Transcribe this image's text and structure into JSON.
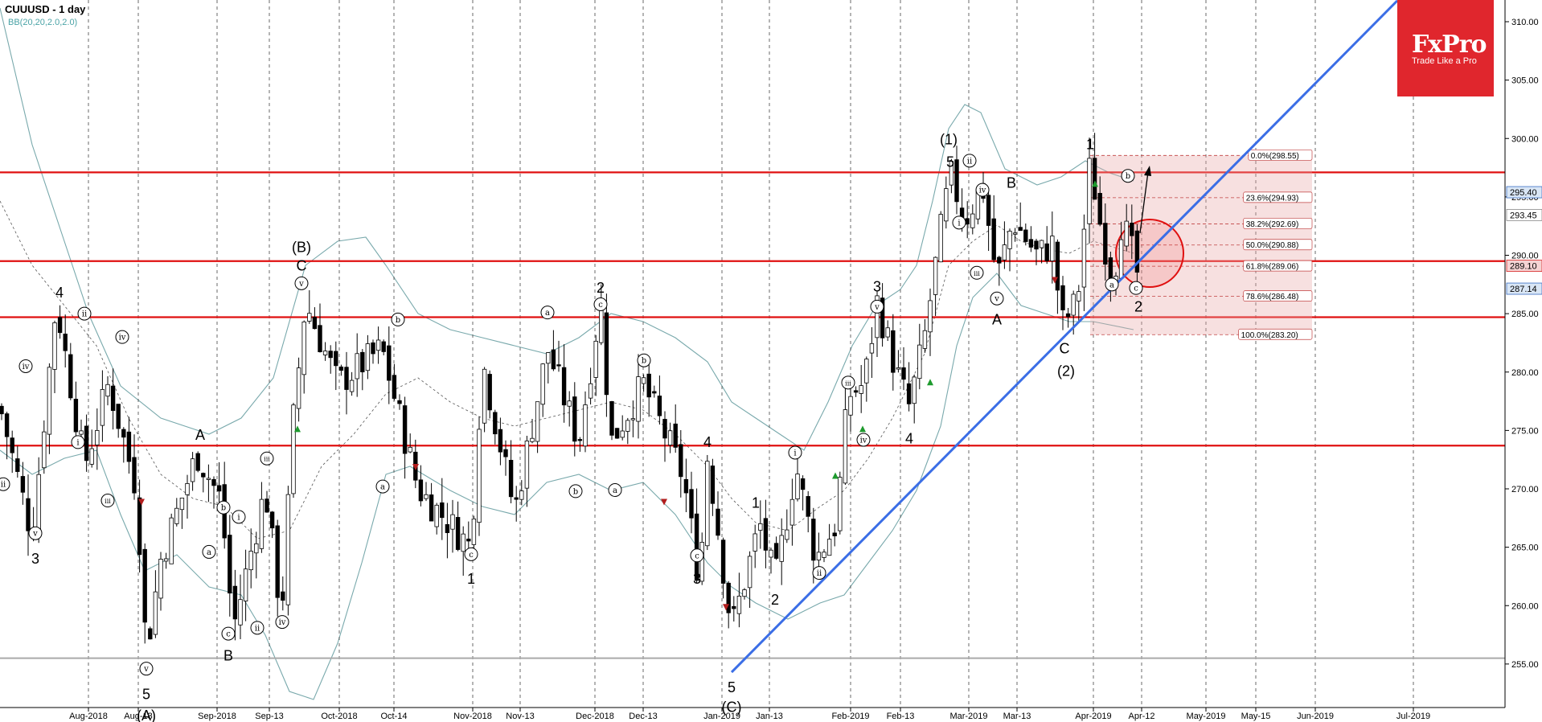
{
  "header": {
    "title": "CUUUSD - 1 day",
    "indicator": "BB(20,20,2.0,2.0)"
  },
  "logo": {
    "name": "FxPro",
    "tagline": "Trade Like a Pro"
  },
  "chart_data": {
    "type": "candlestick",
    "symbol": "CUUUSD",
    "timeframe": "1 day",
    "ylim": [
      251.5,
      311.5
    ],
    "y_ticks": [
      255.0,
      260.0,
      265.0,
      270.0,
      275.0,
      280.0,
      285.0,
      290.0,
      295.0,
      300.0,
      305.0,
      310.0
    ],
    "x_ticks": [
      {
        "label": "Aug-2018",
        "x": 110
      },
      {
        "label": "Aug-13",
        "x": 172
      },
      {
        "label": "Sep-2018",
        "x": 270
      },
      {
        "label": "Sep-13",
        "x": 335
      },
      {
        "label": "Oct-2018",
        "x": 422
      },
      {
        "label": "Oct-14",
        "x": 490
      },
      {
        "label": "Nov-2018",
        "x": 588
      },
      {
        "label": "Nov-13",
        "x": 647
      },
      {
        "label": "Dec-2018",
        "x": 740
      },
      {
        "label": "Dec-13",
        "x": 800
      },
      {
        "label": "Jan-2019",
        "x": 898
      },
      {
        "label": "Jan-13",
        "x": 957
      },
      {
        "label": "Feb-2019",
        "x": 1058
      },
      {
        "label": "Feb-13",
        "x": 1120
      },
      {
        "label": "Mar-2019",
        "x": 1205
      },
      {
        "label": "Mar-13",
        "x": 1265
      },
      {
        "label": "Apr-2019",
        "x": 1360
      },
      {
        "label": "Apr-12",
        "x": 1420
      },
      {
        "label": "May-2019",
        "x": 1500
      },
      {
        "label": "May-15",
        "x": 1562
      },
      {
        "label": "Jun-2019",
        "x": 1636
      },
      {
        "label": "Jul-2019",
        "x": 1758
      }
    ],
    "resistance_levels": [
      297.1,
      289.5,
      284.7,
      273.7
    ],
    "gray_level": 255.5,
    "price_labels": [
      {
        "text": "295.40",
        "value": 295.4,
        "style": "blue"
      },
      {
        "text": "293.45",
        "value": 293.45,
        "style": "plain"
      },
      {
        "text": "289.10",
        "value": 289.1,
        "style": "red"
      },
      {
        "text": "287.14",
        "value": 287.14,
        "style": "blue"
      }
    ],
    "fib_levels": [
      {
        "label": "0.0%(298.55)",
        "value": 298.55
      },
      {
        "label": "23.6%(294.93)",
        "value": 294.93
      },
      {
        "label": "38.2%(292.69)",
        "value": 292.69
      },
      {
        "label": "50.0%(290.88)",
        "value": 290.88
      },
      {
        "label": "61.8%(289.06)",
        "value": 289.06
      },
      {
        "label": "78.6%(286.48)",
        "value": 286.48
      },
      {
        "label": "100.0%(283.20)",
        "value": 283.2
      }
    ],
    "trendline": {
      "from": {
        "date": "Jan-2019",
        "value": 254.3
      },
      "to": {
        "date": "Jul-2019",
        "value": 311.8
      }
    },
    "wave_labels": [
      {
        "text": "4",
        "x": 74,
        "v": 286.8,
        "c": false
      },
      {
        "text": "ii",
        "x": 105,
        "v": 285.0,
        "c": true
      },
      {
        "text": "iv",
        "x": 32,
        "v": 280.5,
        "c": true
      },
      {
        "text": "iv",
        "x": 152,
        "v": 283.0,
        "c": true
      },
      {
        "text": "i",
        "x": 97,
        "v": 274.0,
        "c": true
      },
      {
        "text": "iii",
        "x": 134,
        "v": 269.0,
        "c": true
      },
      {
        "text": "ii",
        "x": 4,
        "v": 270.4,
        "c": true
      },
      {
        "text": "v",
        "x": 44,
        "v": 266.2,
        "c": true
      },
      {
        "text": "3",
        "x": 44,
        "v": 264.0,
        "c": false
      },
      {
        "text": "A",
        "x": 249,
        "v": 274.6,
        "c": false
      },
      {
        "text": "b",
        "x": 278,
        "v": 268.4,
        "c": true
      },
      {
        "text": "i",
        "x": 297,
        "v": 267.6,
        "c": true
      },
      {
        "text": "a",
        "x": 260,
        "v": 264.6,
        "c": true
      },
      {
        "text": "iii",
        "x": 332,
        "v": 272.6,
        "c": true
      },
      {
        "text": "c",
        "x": 284,
        "v": 257.6,
        "c": true
      },
      {
        "text": "B",
        "x": 284,
        "v": 255.7,
        "c": false
      },
      {
        "text": "ii",
        "x": 320,
        "v": 258.1,
        "c": true
      },
      {
        "text": "iv",
        "x": 351,
        "v": 258.6,
        "c": true
      },
      {
        "text": "v",
        "x": 182,
        "v": 254.6,
        "c": true
      },
      {
        "text": "5",
        "x": 182,
        "v": 252.4,
        "c": false
      },
      {
        "text": "(A)",
        "x": 182,
        "v": 250.6,
        "c": false
      },
      {
        "text": "(B)",
        "x": 375,
        "v": 290.7,
        "c": false
      },
      {
        "text": "C",
        "x": 375,
        "v": 289.1,
        "c": false
      },
      {
        "text": "v",
        "x": 375,
        "v": 287.6,
        "c": true
      },
      {
        "text": "b",
        "x": 495,
        "v": 284.5,
        "c": true
      },
      {
        "text": "a",
        "x": 476,
        "v": 270.2,
        "c": true
      },
      {
        "text": "a",
        "x": 681,
        "v": 285.1,
        "c": true
      },
      {
        "text": "2",
        "x": 747,
        "v": 287.2,
        "c": false
      },
      {
        "text": "c",
        "x": 747,
        "v": 285.8,
        "c": true
      },
      {
        "text": "b",
        "x": 801,
        "v": 281.0,
        "c": true
      },
      {
        "text": "b",
        "x": 716,
        "v": 269.8,
        "c": true
      },
      {
        "text": "a",
        "x": 765,
        "v": 269.9,
        "c": true
      },
      {
        "text": "c",
        "x": 586,
        "v": 264.4,
        "c": true
      },
      {
        "text": "1",
        "x": 586,
        "v": 262.3,
        "c": false
      },
      {
        "text": "4",
        "x": 880,
        "v": 274.0,
        "c": false
      },
      {
        "text": "1",
        "x": 940,
        "v": 268.8,
        "c": false
      },
      {
        "text": "c",
        "x": 867,
        "v": 264.3,
        "c": true
      },
      {
        "text": "3",
        "x": 867,
        "v": 262.3,
        "c": false
      },
      {
        "text": "2",
        "x": 964,
        "v": 260.5,
        "c": false
      },
      {
        "text": "5",
        "x": 910,
        "v": 253.0,
        "c": false
      },
      {
        "text": "(C)",
        "x": 910,
        "v": 251.3,
        "c": false
      },
      {
        "text": "i",
        "x": 989,
        "v": 273.1,
        "c": true
      },
      {
        "text": "ii",
        "x": 1019,
        "v": 262.8,
        "c": true
      },
      {
        "text": "iii",
        "x": 1055,
        "v": 279.1,
        "c": true
      },
      {
        "text": "iv",
        "x": 1074,
        "v": 274.2,
        "c": true
      },
      {
        "text": "3",
        "x": 1091,
        "v": 287.3,
        "c": false
      },
      {
        "text": "v",
        "x": 1091,
        "v": 285.6,
        "c": true
      },
      {
        "text": "4",
        "x": 1131,
        "v": 274.3,
        "c": false
      },
      {
        "text": "(1)",
        "x": 1180,
        "v": 299.9,
        "c": false
      },
      {
        "text": "5",
        "x": 1182,
        "v": 298.0,
        "c": false
      },
      {
        "text": "ii",
        "x": 1206,
        "v": 298.1,
        "c": true
      },
      {
        "text": "iv",
        "x": 1222,
        "v": 295.6,
        "c": true
      },
      {
        "text": "i",
        "x": 1193,
        "v": 292.8,
        "c": true
      },
      {
        "text": "iii",
        "x": 1215,
        "v": 288.5,
        "c": true
      },
      {
        "text": "B",
        "x": 1258,
        "v": 296.2,
        "c": false
      },
      {
        "text": "v",
        "x": 1240,
        "v": 286.3,
        "c": true
      },
      {
        "text": "A",
        "x": 1240,
        "v": 284.5,
        "c": false
      },
      {
        "text": "1",
        "x": 1356,
        "v": 299.5,
        "c": false
      },
      {
        "text": "C",
        "x": 1324,
        "v": 282.0,
        "c": false
      },
      {
        "text": "(2)",
        "x": 1326,
        "v": 280.1,
        "c": false
      },
      {
        "text": "b",
        "x": 1403,
        "v": 296.8,
        "c": true
      },
      {
        "text": "a",
        "x": 1383,
        "v": 287.5,
        "c": true
      },
      {
        "text": "c",
        "x": 1413,
        "v": 287.2,
        "c": true
      },
      {
        "text": "2",
        "x": 1416,
        "v": 285.6,
        "c": false
      }
    ]
  }
}
